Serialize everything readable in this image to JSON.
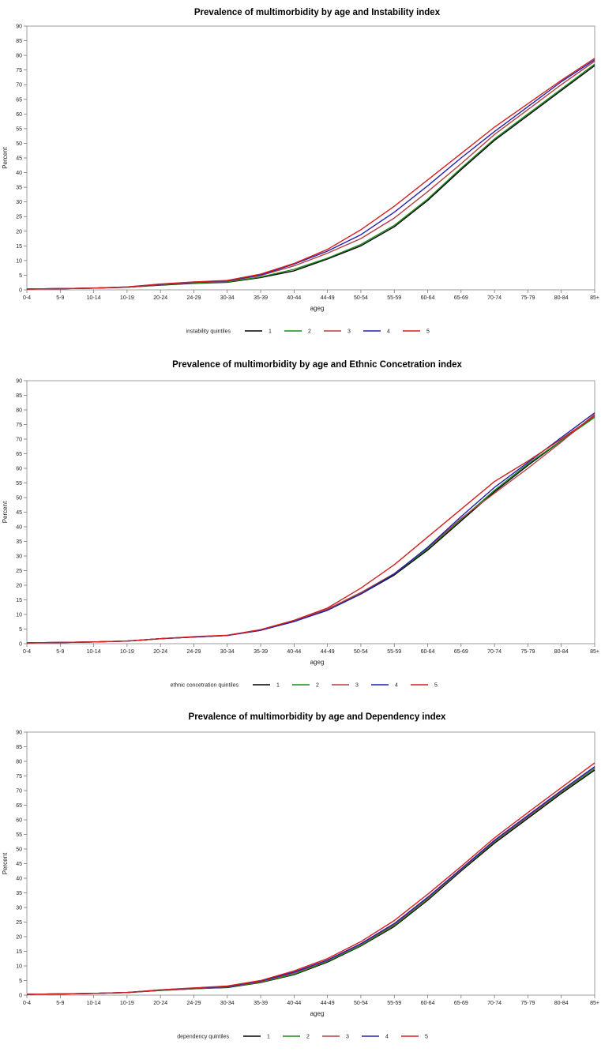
{
  "chart_data": [
    {
      "type": "line",
      "title": "Prevalence of multimorbidity by age and Instability index",
      "xlabel": "ageg",
      "ylabel": "Percent",
      "ylim": [
        0,
        90
      ],
      "yticks": [
        0,
        5,
        10,
        15,
        20,
        25,
        30,
        35,
        40,
        45,
        50,
        55,
        60,
        65,
        70,
        75,
        80,
        85,
        90
      ],
      "categories": [
        "0-4",
        "5-9",
        "10-14",
        "10-19",
        "20-24",
        "24-29",
        "30-34",
        "35-39",
        "40-44",
        "44-49",
        "50-54",
        "55-59",
        "60-64",
        "65-69",
        "70-74",
        "75-79",
        "80-84",
        "85+"
      ],
      "legend_title": "instability quintiles",
      "series": [
        {
          "name": "1",
          "color": "#000000",
          "values": [
            0.3,
            0.4,
            0.6,
            0.9,
            1.6,
            2.2,
            2.6,
            4.2,
            6.5,
            10.5,
            15.0,
            21.5,
            30.5,
            41.0,
            51.0,
            59.5,
            68.0,
            76.5
          ]
        },
        {
          "name": "2",
          "color": "#1a8a1a",
          "values": [
            0.3,
            0.4,
            0.6,
            0.9,
            1.7,
            2.3,
            2.7,
            4.4,
            7.0,
            10.8,
            15.5,
            22.0,
            31.0,
            41.5,
            51.5,
            60.0,
            68.5,
            77.0
          ]
        },
        {
          "name": "3",
          "color": "#b04040",
          "values": [
            0.3,
            0.4,
            0.6,
            0.9,
            1.8,
            2.5,
            3.0,
            4.9,
            8.2,
            12.5,
            17.5,
            24.5,
            33.5,
            43.0,
            53.0,
            61.5,
            70.0,
            78.0
          ]
        },
        {
          "name": "4",
          "color": "#2020b0",
          "values": [
            0.3,
            0.4,
            0.6,
            1.0,
            1.9,
            2.6,
            3.1,
            5.1,
            8.8,
            13.2,
            18.8,
            26.5,
            35.5,
            45.0,
            54.0,
            62.5,
            71.0,
            78.5
          ]
        },
        {
          "name": "5",
          "color": "#d42020",
          "values": [
            0.3,
            0.4,
            0.6,
            1.0,
            2.0,
            2.7,
            3.2,
            5.4,
            9.0,
            13.8,
            20.5,
            28.5,
            37.5,
            46.5,
            55.5,
            63.5,
            71.5,
            79.0
          ]
        }
      ]
    },
    {
      "type": "line",
      "title": "Prevalence of multimorbidity by age and Ethnic Concetration index",
      "xlabel": "ageg",
      "ylabel": "Percent",
      "ylim": [
        0,
        90
      ],
      "yticks": [
        0,
        5,
        10,
        15,
        20,
        25,
        30,
        35,
        40,
        45,
        50,
        55,
        60,
        65,
        70,
        75,
        80,
        85,
        90
      ],
      "categories": [
        "0-4",
        "5-9",
        "10-14",
        "10-19",
        "20-24",
        "24-29",
        "30-34",
        "35-39",
        "40-44",
        "44-49",
        "50-54",
        "55-59",
        "60-64",
        "65-69",
        "70-74",
        "75-79",
        "80-84",
        "85+"
      ],
      "legend_title": "ethnic concetration quintiles",
      "series": [
        {
          "name": "1",
          "color": "#000000",
          "values": [
            0.3,
            0.4,
            0.6,
            0.9,
            1.7,
            2.3,
            2.8,
            4.6,
            7.6,
            11.5,
            17.0,
            23.5,
            32.0,
            42.0,
            52.0,
            61.0,
            69.5,
            78.0
          ]
        },
        {
          "name": "2",
          "color": "#1a8a1a",
          "values": [
            0.3,
            0.4,
            0.6,
            0.9,
            1.7,
            2.3,
            2.8,
            4.6,
            7.7,
            11.6,
            17.2,
            23.8,
            32.5,
            42.5,
            52.5,
            61.5,
            69.5,
            77.5
          ]
        },
        {
          "name": "3",
          "color": "#b04040",
          "values": [
            0.3,
            0.4,
            0.6,
            0.9,
            1.7,
            2.3,
            2.8,
            4.6,
            7.8,
            11.8,
            17.5,
            24.0,
            32.8,
            42.8,
            51.5,
            60.0,
            69.0,
            78.5
          ]
        },
        {
          "name": "4",
          "color": "#2020b0",
          "values": [
            0.3,
            0.4,
            0.6,
            0.9,
            1.7,
            2.3,
            2.8,
            4.6,
            7.6,
            11.4,
            17.0,
            23.8,
            33.0,
            43.5,
            53.5,
            62.0,
            70.5,
            79.0
          ]
        },
        {
          "name": "5",
          "color": "#d42020",
          "values": [
            0.3,
            0.4,
            0.6,
            0.9,
            1.7,
            2.4,
            2.9,
            4.8,
            8.0,
            12.2,
            19.0,
            27.0,
            36.5,
            46.0,
            55.5,
            62.5,
            70.0,
            78.0
          ]
        }
      ]
    },
    {
      "type": "line",
      "title": "Prevalence of multimorbidity by age and Dependency index",
      "xlabel": "ageg",
      "ylabel": "Percent",
      "ylim": [
        0,
        90
      ],
      "yticks": [
        0,
        5,
        10,
        15,
        20,
        25,
        30,
        35,
        40,
        45,
        50,
        55,
        60,
        65,
        70,
        75,
        80,
        85,
        90
      ],
      "categories": [
        "0-4",
        "5-9",
        "10-14",
        "10-19",
        "20-24",
        "24-29",
        "30-34",
        "35-39",
        "40-44",
        "44-49",
        "50-54",
        "55-59",
        "60-64",
        "65-69",
        "70-74",
        "75-79",
        "80-84",
        "85+"
      ],
      "legend_title": "dependency quintiles",
      "series": [
        {
          "name": "1",
          "color": "#000000",
          "values": [
            0.3,
            0.4,
            0.6,
            0.9,
            1.6,
            2.2,
            2.6,
            4.3,
            7.0,
            11.3,
            16.8,
            23.5,
            32.5,
            42.5,
            52.0,
            60.5,
            69.0,
            77.0
          ]
        },
        {
          "name": "2",
          "color": "#1a8a1a",
          "values": [
            0.3,
            0.4,
            0.6,
            0.9,
            1.6,
            2.2,
            2.7,
            4.4,
            7.2,
            11.5,
            17.0,
            23.8,
            32.8,
            42.8,
            52.5,
            61.0,
            69.5,
            77.5
          ]
        },
        {
          "name": "3",
          "color": "#b04040",
          "values": [
            0.3,
            0.4,
            0.6,
            0.9,
            1.7,
            2.3,
            2.8,
            4.6,
            7.6,
            11.8,
            17.4,
            24.2,
            33.2,
            43.0,
            52.8,
            61.2,
            69.8,
            78.0
          ]
        },
        {
          "name": "4",
          "color": "#2020b0",
          "values": [
            0.3,
            0.4,
            0.6,
            0.9,
            1.8,
            2.4,
            2.9,
            4.8,
            7.9,
            12.0,
            17.6,
            24.5,
            33.5,
            43.2,
            53.0,
            61.5,
            70.0,
            78.2
          ]
        },
        {
          "name": "5",
          "color": "#d42020",
          "values": [
            0.3,
            0.4,
            0.6,
            0.9,
            1.8,
            2.5,
            3.1,
            5.0,
            8.3,
            12.5,
            18.3,
            25.5,
            34.5,
            44.0,
            53.8,
            62.5,
            71.0,
            79.5
          ]
        }
      ]
    }
  ]
}
